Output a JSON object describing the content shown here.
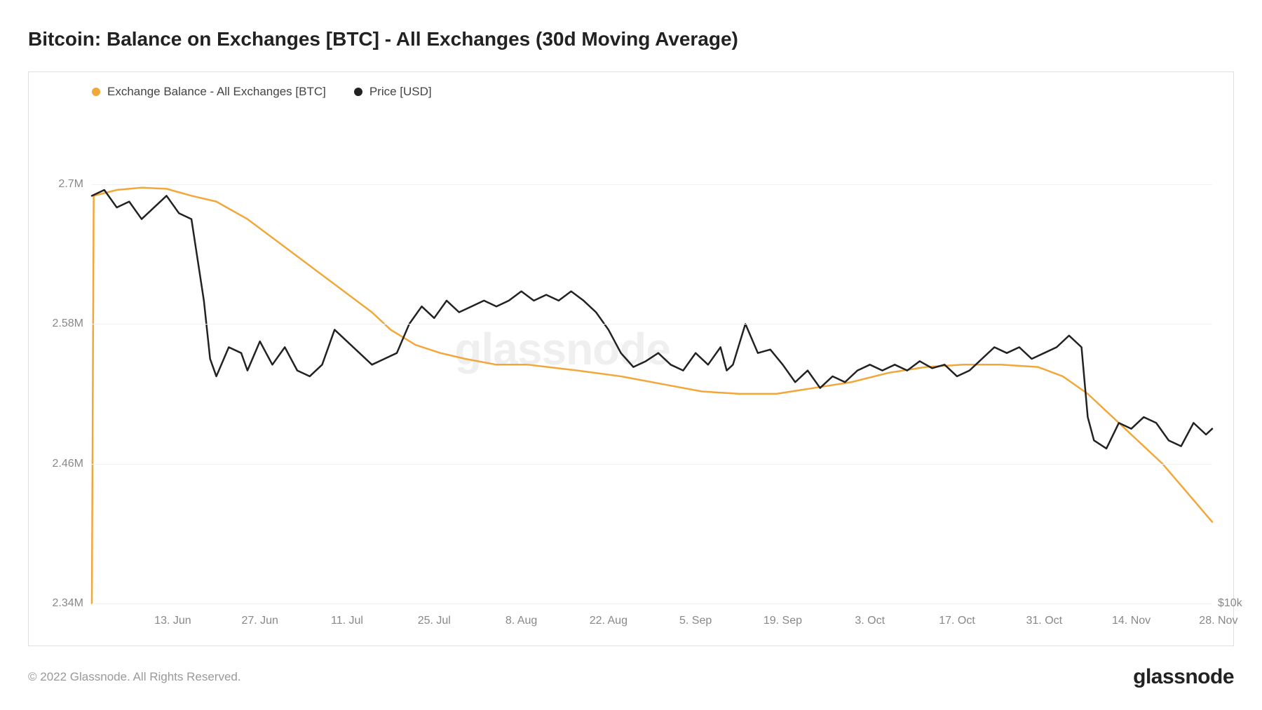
{
  "title": "Bitcoin: Balance on Exchanges [BTC] - All Exchanges (30d Moving Average)",
  "copyright": "© 2022 Glassnode. All Rights Reserved.",
  "brand": "glassnode",
  "watermark": "glassnode",
  "chart": {
    "type": "line",
    "background_color": "#ffffff",
    "border_color": "#e0e0e0",
    "grid_color": "#f2f2f2",
    "tick_color": "#888888",
    "line_width": 2.5,
    "y_left": {
      "min": 2.34,
      "max": 2.76,
      "ticks": [
        {
          "v": 2.34,
          "label": "2.34M"
        },
        {
          "v": 2.46,
          "label": "2.46M"
        },
        {
          "v": 2.58,
          "label": "2.58M"
        },
        {
          "v": 2.7,
          "label": "2.7M"
        }
      ]
    },
    "y_right": {
      "label_at": 2.34,
      "label": "$10k"
    },
    "x": {
      "min": 0,
      "max": 180,
      "ticks": [
        {
          "v": 13,
          "label": "13. Jun"
        },
        {
          "v": 27,
          "label": "27. Jun"
        },
        {
          "v": 41,
          "label": "11. Jul"
        },
        {
          "v": 55,
          "label": "25. Jul"
        },
        {
          "v": 69,
          "label": "8. Aug"
        },
        {
          "v": 83,
          "label": "22. Aug"
        },
        {
          "v": 97,
          "label": "5. Sep"
        },
        {
          "v": 111,
          "label": "19. Sep"
        },
        {
          "v": 125,
          "label": "3. Oct"
        },
        {
          "v": 139,
          "label": "17. Oct"
        },
        {
          "v": 153,
          "label": "31. Oct"
        },
        {
          "v": 167,
          "label": "14. Nov"
        },
        {
          "v": 181,
          "label": "28. Nov"
        }
      ]
    },
    "series": [
      {
        "name": "Exchange Balance - All Exchanges [BTC]",
        "color": "#f2a73b",
        "legend_marker": "dot",
        "data": [
          [
            0,
            2.34
          ],
          [
            0.3,
            2.69
          ],
          [
            4,
            2.695
          ],
          [
            8,
            2.697
          ],
          [
            12,
            2.696
          ],
          [
            16,
            2.69
          ],
          [
            20,
            2.685
          ],
          [
            25,
            2.67
          ],
          [
            30,
            2.65
          ],
          [
            35,
            2.63
          ],
          [
            40,
            2.61
          ],
          [
            45,
            2.59
          ],
          [
            48,
            2.575
          ],
          [
            52,
            2.562
          ],
          [
            56,
            2.555
          ],
          [
            60,
            2.55
          ],
          [
            65,
            2.545
          ],
          [
            70,
            2.545
          ],
          [
            78,
            2.54
          ],
          [
            85,
            2.535
          ],
          [
            92,
            2.528
          ],
          [
            98,
            2.522
          ],
          [
            104,
            2.52
          ],
          [
            110,
            2.52
          ],
          [
            116,
            2.525
          ],
          [
            122,
            2.53
          ],
          [
            128,
            2.538
          ],
          [
            134,
            2.543
          ],
          [
            140,
            2.545
          ],
          [
            146,
            2.545
          ],
          [
            152,
            2.543
          ],
          [
            156,
            2.535
          ],
          [
            160,
            2.52
          ],
          [
            164,
            2.5
          ],
          [
            168,
            2.48
          ],
          [
            172,
            2.46
          ],
          [
            176,
            2.435
          ],
          [
            180,
            2.41
          ]
        ]
      },
      {
        "name": "Price [USD]",
        "color": "#222222",
        "legend_marker": "dot",
        "data": [
          [
            0,
            2.69
          ],
          [
            2,
            2.695
          ],
          [
            4,
            2.68
          ],
          [
            6,
            2.685
          ],
          [
            8,
            2.67
          ],
          [
            10,
            2.68
          ],
          [
            12,
            2.69
          ],
          [
            14,
            2.675
          ],
          [
            16,
            2.67
          ],
          [
            18,
            2.6
          ],
          [
            19,
            2.55
          ],
          [
            20,
            2.535
          ],
          [
            22,
            2.56
          ],
          [
            24,
            2.555
          ],
          [
            25,
            2.54
          ],
          [
            27,
            2.565
          ],
          [
            29,
            2.545
          ],
          [
            31,
            2.56
          ],
          [
            33,
            2.54
          ],
          [
            35,
            2.535
          ],
          [
            37,
            2.545
          ],
          [
            39,
            2.575
          ],
          [
            41,
            2.565
          ],
          [
            43,
            2.555
          ],
          [
            45,
            2.545
          ],
          [
            47,
            2.55
          ],
          [
            49,
            2.555
          ],
          [
            51,
            2.58
          ],
          [
            53,
            2.595
          ],
          [
            55,
            2.585
          ],
          [
            57,
            2.6
          ],
          [
            59,
            2.59
          ],
          [
            61,
            2.595
          ],
          [
            63,
            2.6
          ],
          [
            65,
            2.595
          ],
          [
            67,
            2.6
          ],
          [
            69,
            2.608
          ],
          [
            71,
            2.6
          ],
          [
            73,
            2.605
          ],
          [
            75,
            2.6
          ],
          [
            77,
            2.608
          ],
          [
            79,
            2.6
          ],
          [
            81,
            2.59
          ],
          [
            83,
            2.575
          ],
          [
            85,
            2.555
          ],
          [
            87,
            2.543
          ],
          [
            89,
            2.548
          ],
          [
            91,
            2.555
          ],
          [
            93,
            2.545
          ],
          [
            95,
            2.54
          ],
          [
            97,
            2.555
          ],
          [
            99,
            2.545
          ],
          [
            101,
            2.56
          ],
          [
            102,
            2.54
          ],
          [
            103,
            2.545
          ],
          [
            105,
            2.58
          ],
          [
            107,
            2.555
          ],
          [
            109,
            2.558
          ],
          [
            111,
            2.545
          ],
          [
            113,
            2.53
          ],
          [
            115,
            2.54
          ],
          [
            117,
            2.525
          ],
          [
            119,
            2.535
          ],
          [
            121,
            2.53
          ],
          [
            123,
            2.54
          ],
          [
            125,
            2.545
          ],
          [
            127,
            2.54
          ],
          [
            129,
            2.545
          ],
          [
            131,
            2.54
          ],
          [
            133,
            2.548
          ],
          [
            135,
            2.542
          ],
          [
            137,
            2.545
          ],
          [
            139,
            2.535
          ],
          [
            141,
            2.54
          ],
          [
            143,
            2.55
          ],
          [
            145,
            2.56
          ],
          [
            147,
            2.555
          ],
          [
            149,
            2.56
          ],
          [
            151,
            2.55
          ],
          [
            153,
            2.555
          ],
          [
            155,
            2.56
          ],
          [
            157,
            2.57
          ],
          [
            159,
            2.56
          ],
          [
            160,
            2.5
          ],
          [
            161,
            2.48
          ],
          [
            163,
            2.473
          ],
          [
            165,
            2.495
          ],
          [
            167,
            2.49
          ],
          [
            169,
            2.5
          ],
          [
            171,
            2.495
          ],
          [
            173,
            2.48
          ],
          [
            175,
            2.475
          ],
          [
            177,
            2.495
          ],
          [
            179,
            2.485
          ],
          [
            180,
            2.49
          ]
        ]
      }
    ]
  }
}
